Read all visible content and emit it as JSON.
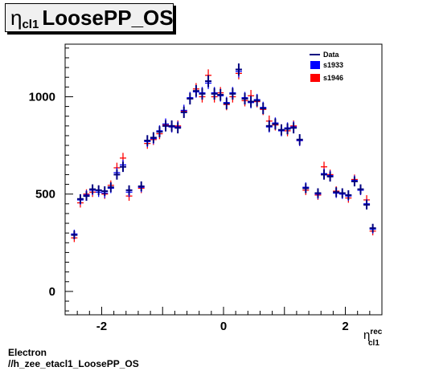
{
  "title": {
    "symbol": "η",
    "sub": "cl1",
    "text": "LoosePP_OS"
  },
  "footer": {
    "line1": "Electron",
    "line2": "//h_zee_etacl1_LoosePP_OS"
  },
  "chart_data": {
    "type": "scatter",
    "xlabel": {
      "symbol": "η",
      "sup": "rec",
      "sub": "cl1"
    },
    "xlim": [
      -2.6,
      2.6
    ],
    "ylim": [
      -120,
      1270
    ],
    "xticks": [
      -2,
      0,
      2
    ],
    "yticks": [
      0,
      500,
      1000
    ],
    "legend_position": "top-right",
    "colors": {
      "Data": "#000080",
      "s1933": "#0000ff",
      "s1946": "#ff0000"
    },
    "x": [
      -2.45,
      -2.35,
      -2.25,
      -2.15,
      -2.05,
      -1.95,
      -1.85,
      -1.75,
      -1.65,
      -1.55,
      -1.35,
      -1.25,
      -1.15,
      -1.05,
      -0.95,
      -0.85,
      -0.75,
      -0.65,
      -0.55,
      -0.45,
      -0.35,
      -0.25,
      -0.15,
      -0.05,
      0.05,
      0.15,
      0.25,
      0.35,
      0.45,
      0.55,
      0.65,
      0.75,
      0.85,
      0.95,
      1.05,
      1.15,
      1.25,
      1.35,
      1.55,
      1.65,
      1.75,
      1.85,
      1.95,
      2.05,
      2.15,
      2.25,
      2.35,
      2.45
    ],
    "series": [
      {
        "name": "Data",
        "values": [
          290,
          475,
          490,
          525,
          520,
          515,
          535,
          600,
          640,
          520,
          540,
          775,
          790,
          820,
          850,
          850,
          840,
          920,
          990,
          1030,
          1015,
          1080,
          1015,
          1010,
          965,
          1015,
          1140,
          990,
          975,
          980,
          940,
          850,
          860,
          830,
          835,
          840,
          780,
          530,
          505,
          600,
          590,
          510,
          505,
          495,
          565,
          525,
          445,
          325
        ]
      },
      {
        "name": "s1933",
        "values": [
          295,
          470,
          495,
          520,
          510,
          505,
          530,
          610,
          650,
          510,
          535,
          770,
          785,
          825,
          860,
          845,
          845,
          930,
          995,
          1025,
          1020,
          1070,
          1020,
          1005,
          970,
          1020,
          1130,
          995,
          970,
          985,
          945,
          845,
          865,
          825,
          840,
          845,
          775,
          535,
          500,
          605,
          595,
          505,
          500,
          490,
          570,
          520,
          450,
          320
        ]
      },
      {
        "name": "s1946",
        "values": [
          275,
          455,
          500,
          510,
          520,
          500,
          545,
          635,
          685,
          490,
          530,
          760,
          780,
          810,
          855,
          845,
          850,
          925,
          990,
          1040,
          1000,
          1110,
          1000,
          1020,
          960,
          1000,
          1120,
          980,
          1005,
          975,
          935,
          875,
          855,
          830,
          825,
          850,
          775,
          520,
          495,
          640,
          600,
          515,
          505,
          480,
          575,
          520,
          470,
          310
        ]
      }
    ],
    "legend": [
      "Data",
      "s1933",
      "s1946"
    ]
  }
}
